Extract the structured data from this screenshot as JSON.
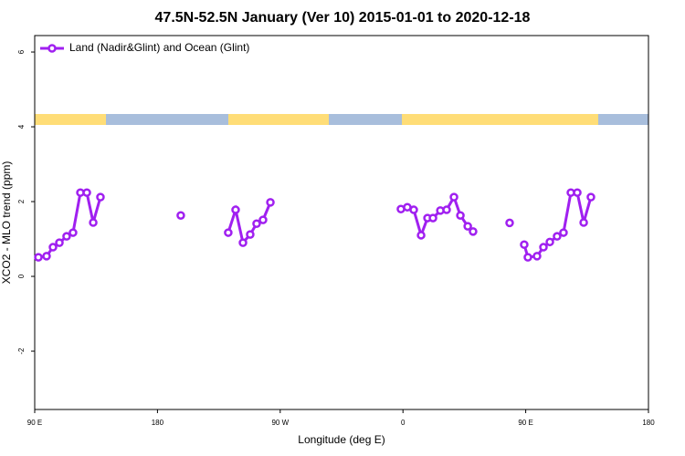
{
  "chart_data": {
    "type": "line",
    "title": "47.5N-52.5N January (Ver 10)   2015-01-01 to 2020-12-18",
    "x_label": "Longitude (deg E)",
    "y_label": "XCO2 - MLO trend (ppm)",
    "xlim": [
      90,
      540
    ],
    "ylim": [
      -3.56,
      6.44
    ],
    "xticks": [
      {
        "value": 90,
        "label": "90 E"
      },
      {
        "value": 180,
        "label": "180"
      },
      {
        "value": 270,
        "label": "90 W"
      },
      {
        "value": 360,
        "label": "0"
      },
      {
        "value": 450,
        "label": "90 E"
      },
      {
        "value": 540,
        "label": "180"
      }
    ],
    "yticks": [
      -2,
      0,
      2,
      4,
      6
    ],
    "legend": "top-left",
    "series": [
      {
        "name": "Land (Nadir&Glint) and Ocean (Glint)",
        "color": "#a020f0",
        "x": [
          92.7,
          98.7,
          103.4,
          108.1,
          113.4,
          118.1,
          123.5,
          128.2,
          132.9,
          138.2,
          null,
          197.1,
          null,
          231.9,
          237.3,
          242.7,
          248.0,
          252.7,
          257.4,
          262.8,
          null,
          358.5,
          363.2,
          367.9,
          373.3,
          378.0,
          382.0,
          387.4,
          392.0,
          397.4,
          402.1,
          407.5,
          411.4,
          null,
          438.2,
          null,
          448.9,
          451.6,
          458.3,
          463.0,
          467.7,
          473.0,
          477.7,
          483.1,
          487.8,
          492.5,
          497.8
        ],
        "values": [
          0.51,
          0.54,
          0.78,
          0.9,
          1.07,
          1.17,
          2.24,
          2.24,
          1.44,
          2.12,
          null,
          1.63,
          null,
          1.17,
          1.78,
          0.9,
          1.12,
          1.41,
          1.51,
          1.98,
          null,
          1.8,
          1.85,
          1.78,
          1.1,
          1.56,
          1.56,
          1.76,
          1.78,
          2.12,
          1.63,
          1.34,
          1.2,
          null,
          1.43,
          null,
          0.85,
          0.51,
          0.54,
          0.78,
          0.92,
          1.07,
          1.17,
          2.24,
          2.24,
          1.44,
          2.12
        ]
      }
    ]
  }
}
